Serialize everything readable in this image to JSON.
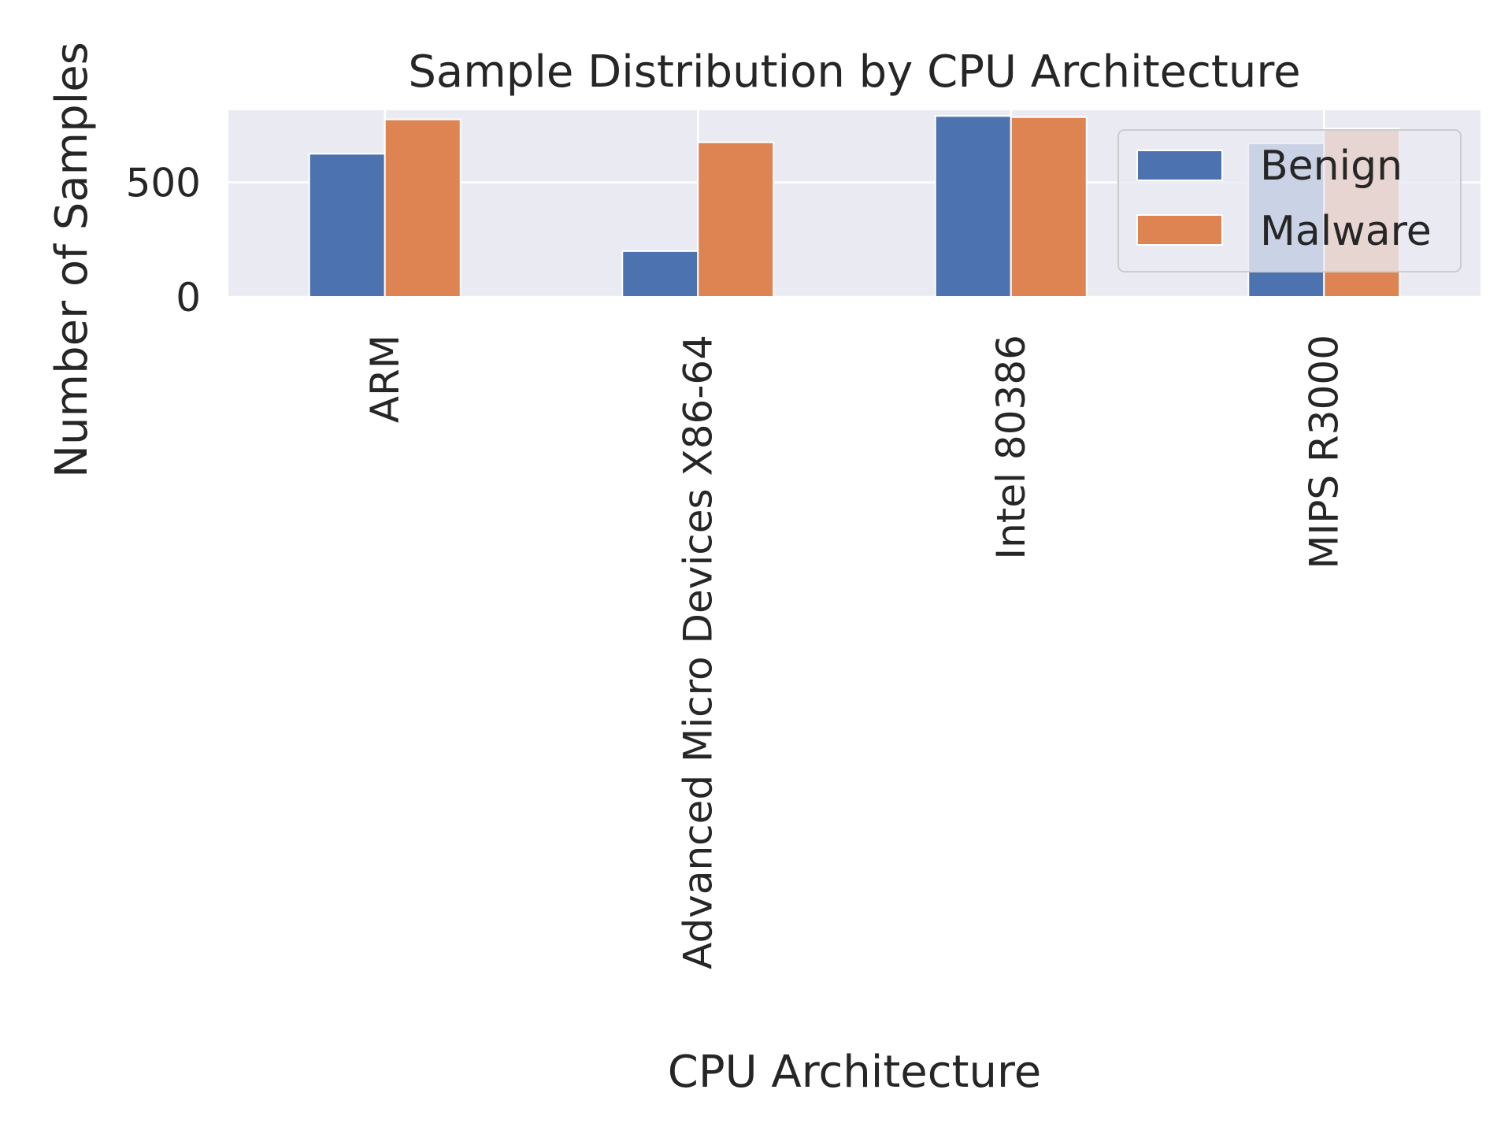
{
  "chart_data": {
    "type": "bar",
    "title": "Sample Distribution by CPU Architecture",
    "xlabel": "CPU Architecture",
    "ylabel": "Number of Samples",
    "categories": [
      "ARM",
      "Advanced Micro Devices X86-64",
      "Intel 80386",
      "MIPS R3000"
    ],
    "series": [
      {
        "name": "Benign",
        "values": [
          625,
          200,
          790,
          670
        ]
      },
      {
        "name": "Malware",
        "values": [
          775,
          675,
          785,
          735
        ]
      }
    ],
    "ylim": [
      0,
      815
    ],
    "yticks": [
      0,
      500
    ],
    "grid": true,
    "legend_position": "upper-right"
  },
  "colors": {
    "Benign": "#4c72b0",
    "Malware": "#dd8452",
    "plot_background": "#eaeaf2",
    "grid": "#ffffff"
  }
}
